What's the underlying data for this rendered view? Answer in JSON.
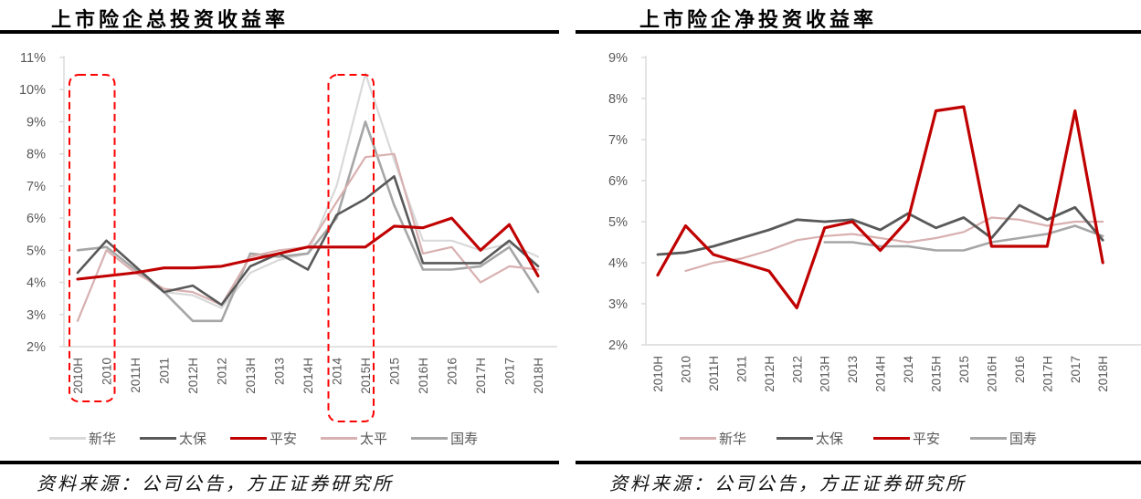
{
  "chart_data": [
    {
      "type": "line",
      "title": "上市险企总投资收益率",
      "source": "资料来源：公司公告，方正证券研究所",
      "ylim": [
        2,
        11
      ],
      "y_tick_step": 1,
      "y_tick_suffix": "%",
      "grid": false,
      "legend_position": "bottom",
      "categories": [
        "2010H",
        "2010",
        "2011H",
        "2011",
        "2012H",
        "2012",
        "2013H",
        "2013",
        "2014H",
        "2014",
        "2015H",
        "2015",
        "2016H",
        "2016",
        "2017H",
        "2017",
        "2018H"
      ],
      "series": [
        {
          "key": "xinhua",
          "name": "新华",
          "color": "#d9d9d9",
          "width": 2.2,
          "values": [
            5.0,
            5.1,
            4.4,
            3.7,
            3.6,
            3.2,
            4.3,
            4.7,
            4.9,
            7.0,
            10.5,
            7.8,
            5.3,
            5.3,
            5.0,
            5.2,
            4.8
          ]
        },
        {
          "key": "taibao",
          "name": "太保",
          "color": "#595959",
          "width": 2.6,
          "values": [
            4.3,
            5.3,
            4.5,
            3.7,
            3.9,
            3.3,
            4.5,
            4.9,
            4.4,
            6.1,
            6.6,
            7.3,
            4.6,
            4.6,
            4.6,
            5.3,
            4.5
          ]
        },
        {
          "key": "pingan",
          "name": "平安",
          "color": "#c00000",
          "width": 3.1,
          "values": [
            4.1,
            4.2,
            4.3,
            4.45,
            4.45,
            4.5,
            4.7,
            4.9,
            5.1,
            5.1,
            5.1,
            5.75,
            5.7,
            6.0,
            5.0,
            5.8,
            4.2
          ]
        },
        {
          "key": "taiping",
          "name": "太平",
          "color": "#d8b0b0",
          "width": 2.2,
          "values": [
            2.8,
            5.0,
            4.3,
            3.8,
            3.7,
            3.3,
            4.8,
            5.0,
            5.1,
            6.5,
            7.9,
            8.0,
            4.9,
            5.1,
            4.0,
            4.5,
            4.4
          ]
        },
        {
          "key": "guoshou",
          "name": "国寿",
          "color": "#a6a6a6",
          "width": 2.6,
          "values": [
            5.0,
            5.1,
            4.4,
            3.7,
            2.8,
            2.8,
            4.9,
            4.8,
            4.9,
            6.0,
            9.0,
            6.4,
            4.4,
            4.4,
            4.5,
            5.1,
            3.7
          ]
        }
      ],
      "highlight_boxes": [
        {
          "start_index": 0,
          "end_index": 1,
          "color": "#ff0000",
          "note": "2010H-2010 period highlighted"
        },
        {
          "start_index": 9,
          "end_index": 10,
          "color": "#ff0000",
          "note": "2014-2015H period highlighted"
        }
      ]
    },
    {
      "type": "line",
      "title": "上市险企净投资收益率",
      "source": "资料来源：公司公告，方正证券研究所",
      "ylim": [
        2,
        9
      ],
      "y_tick_step": 1,
      "y_tick_suffix": "%",
      "grid": false,
      "legend_position": "bottom",
      "categories": [
        "2010H",
        "2010",
        "2011H",
        "2011",
        "2012H",
        "2012",
        "2013H",
        "2013",
        "2014H",
        "2014",
        "2015H",
        "2015",
        "2016H",
        "2016",
        "2017H",
        "2017",
        "2018H"
      ],
      "series": [
        {
          "key": "xinhua",
          "name": "新华",
          "color": "#d8b0b0",
          "width": 2.2,
          "values": [
            null,
            3.8,
            4.0,
            4.1,
            4.3,
            4.55,
            4.65,
            4.7,
            4.6,
            4.5,
            4.6,
            4.75,
            5.1,
            5.05,
            4.9,
            5.0,
            5.0
          ]
        },
        {
          "key": "taibao",
          "name": "太保",
          "color": "#595959",
          "width": 2.8,
          "values": [
            4.2,
            4.25,
            4.4,
            4.6,
            4.8,
            5.05,
            5.0,
            5.05,
            4.8,
            5.2,
            4.85,
            5.1,
            4.6,
            5.4,
            5.05,
            5.35,
            4.55
          ]
        },
        {
          "key": "pingan",
          "name": "平安",
          "color": "#c00000",
          "width": 3.2,
          "values": [
            3.7,
            4.9,
            4.2,
            4.0,
            3.8,
            2.9,
            4.85,
            5.0,
            4.3,
            5.05,
            7.7,
            7.8,
            4.4,
            4.4,
            4.4,
            7.7,
            4.0
          ]
        },
        {
          "key": "guoshou",
          "name": "国寿",
          "color": "#a6a6a6",
          "width": 2.6,
          "values": [
            null,
            null,
            null,
            null,
            null,
            null,
            4.5,
            4.5,
            4.4,
            4.4,
            4.3,
            4.3,
            4.5,
            4.6,
            4.7,
            4.9,
            4.65
          ]
        }
      ],
      "highlight_boxes": []
    }
  ]
}
